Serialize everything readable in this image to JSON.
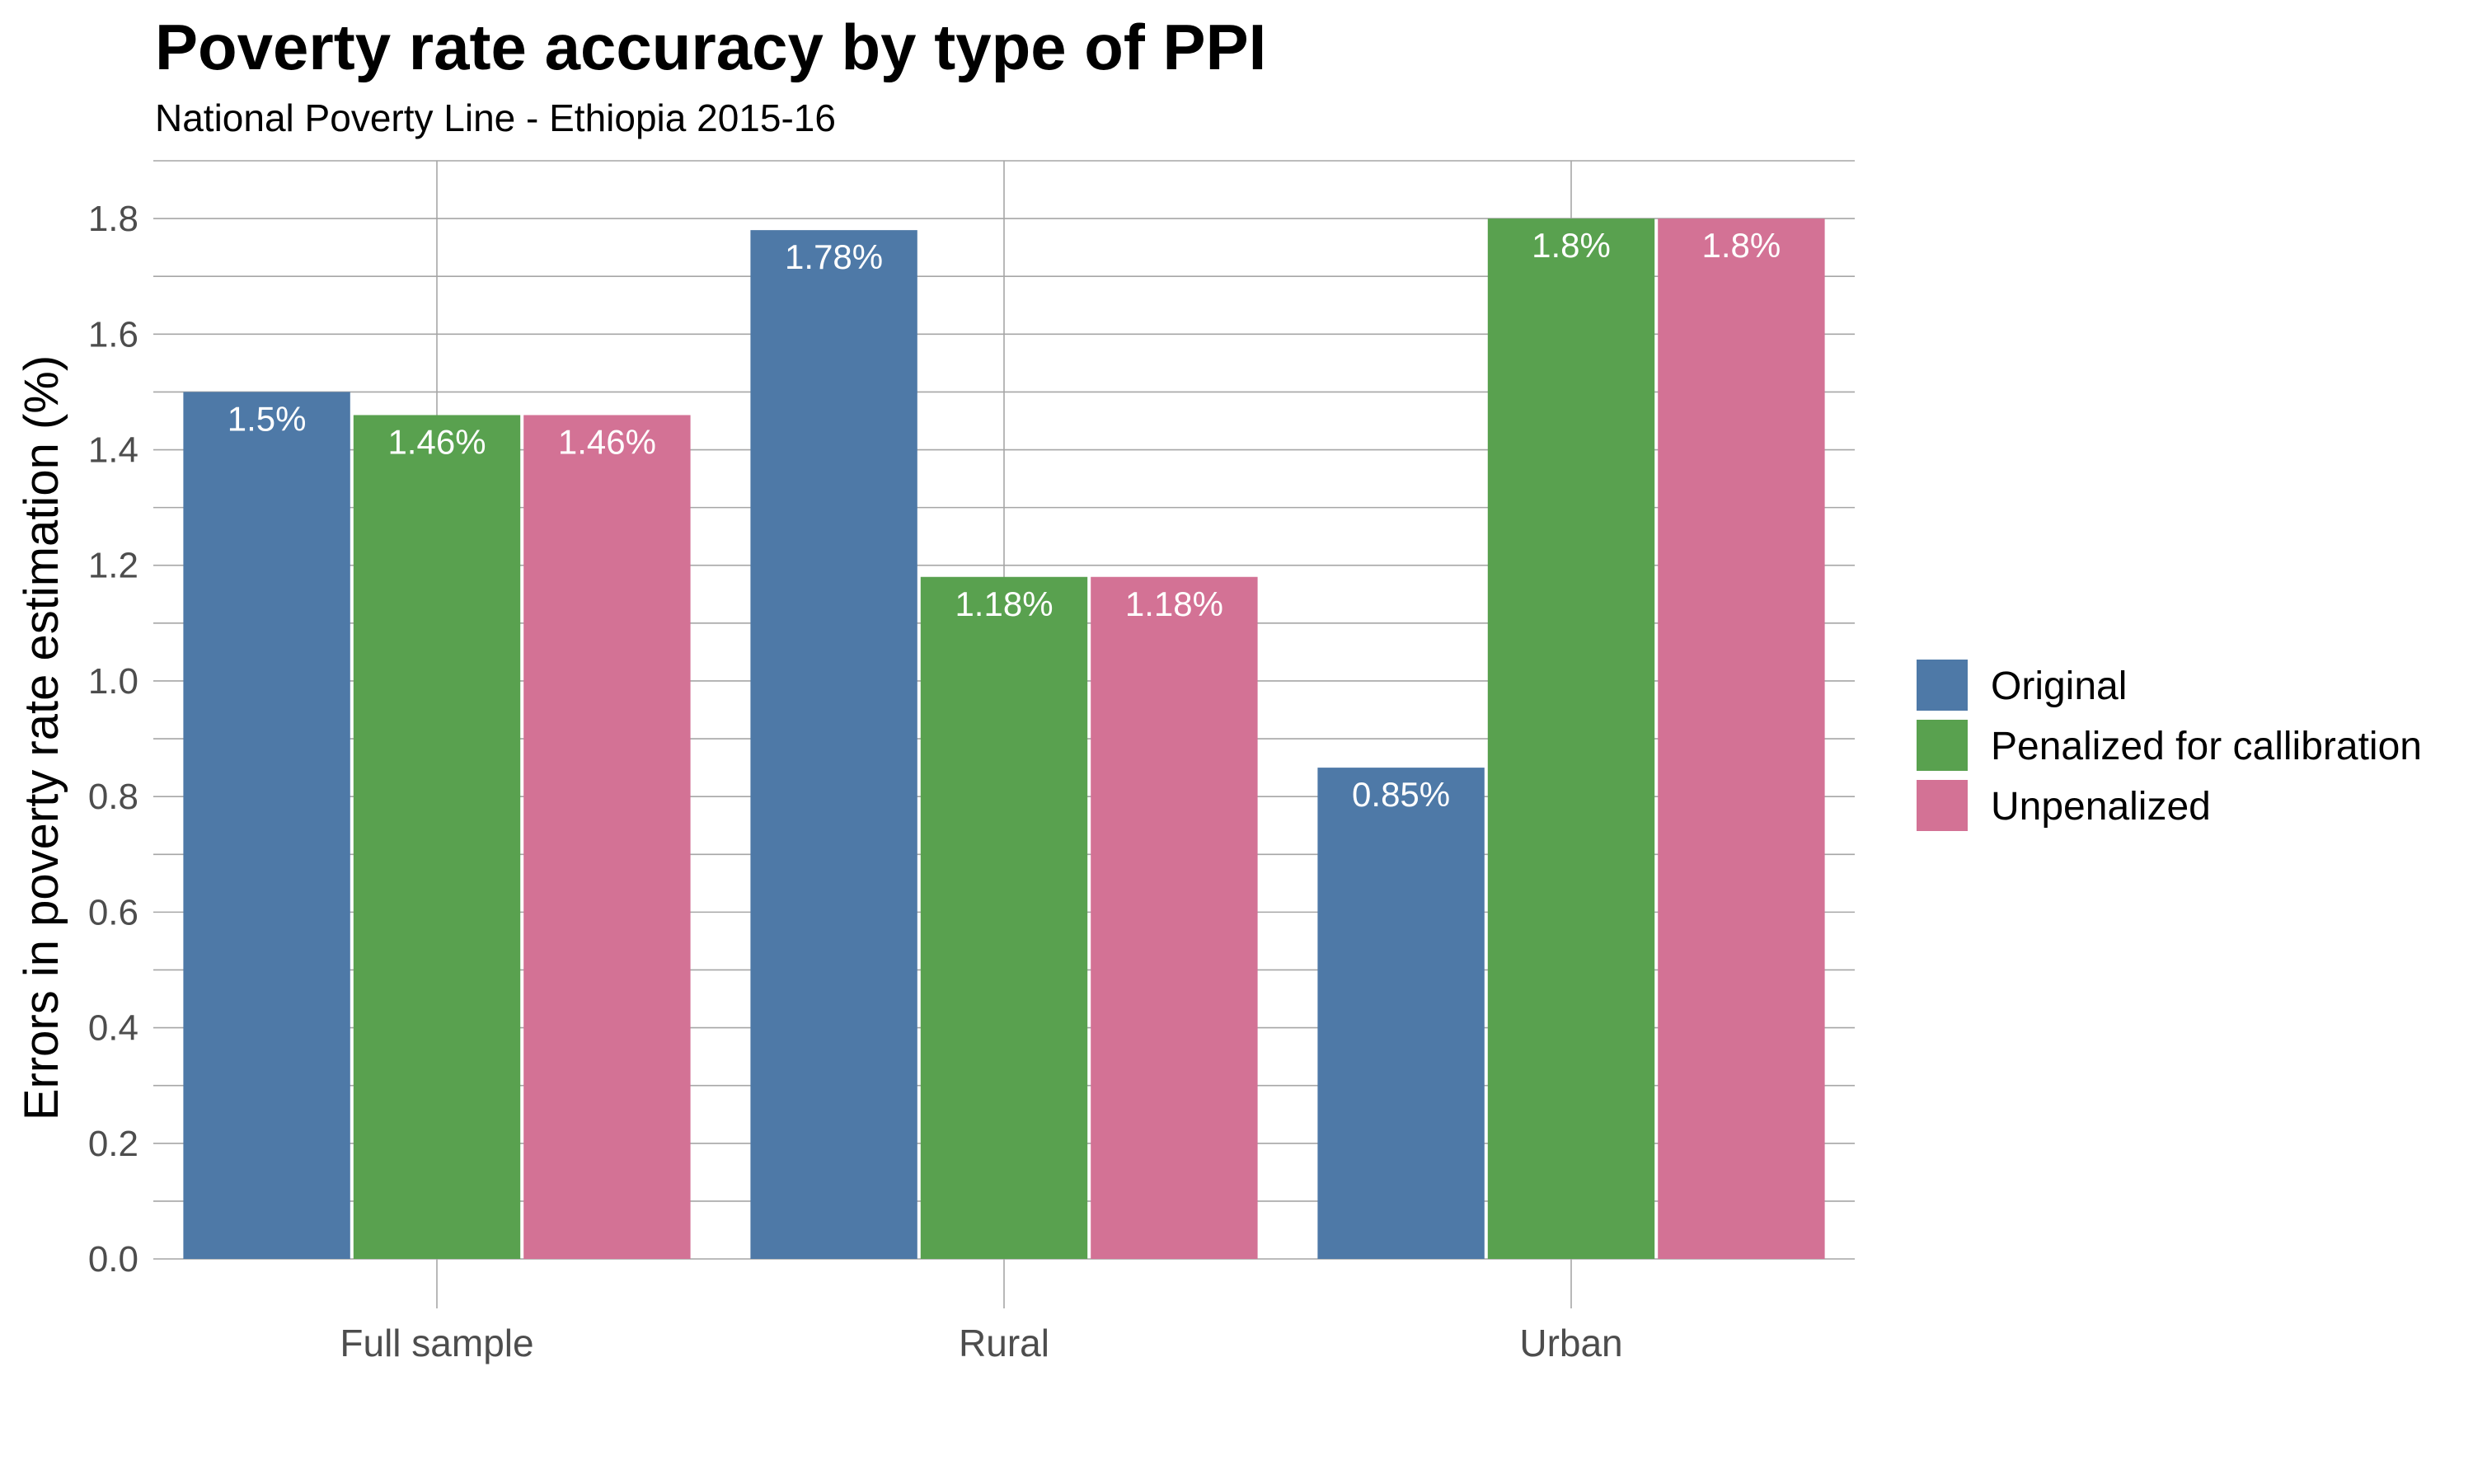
{
  "chart_data": {
    "type": "bar",
    "title": "Poverty rate accuracy by type of PPI",
    "subtitle": "National Poverty Line - Ethiopia 2015-16",
    "xlabel": "",
    "ylabel": "Errors in poverty rate estimation (%)",
    "ylim": [
      0,
      1.9
    ],
    "yticks": [
      "0.0",
      "0.2",
      "0.4",
      "0.6",
      "0.8",
      "1.0",
      "1.2",
      "1.4",
      "1.6",
      "1.8"
    ],
    "categories": [
      "Full sample",
      "Rural",
      "Urban"
    ],
    "series": [
      {
        "name": "Original",
        "color": "#4e79a7",
        "values": [
          1.5,
          1.78,
          0.85
        ],
        "labels": [
          "1.5%",
          "1.78%",
          "0.85%"
        ]
      },
      {
        "name": "Penalized for callibration",
        "color": "#59a14f",
        "values": [
          1.46,
          1.18,
          1.8
        ],
        "labels": [
          "1.46%",
          "1.18%",
          "1.8%"
        ]
      },
      {
        "name": "Unpenalized",
        "color": "#d37295",
        "values": [
          1.46,
          1.18,
          1.8
        ],
        "labels": [
          "1.46%",
          "1.18%",
          "1.8%"
        ]
      }
    ],
    "grid": true,
    "legend": "right"
  }
}
